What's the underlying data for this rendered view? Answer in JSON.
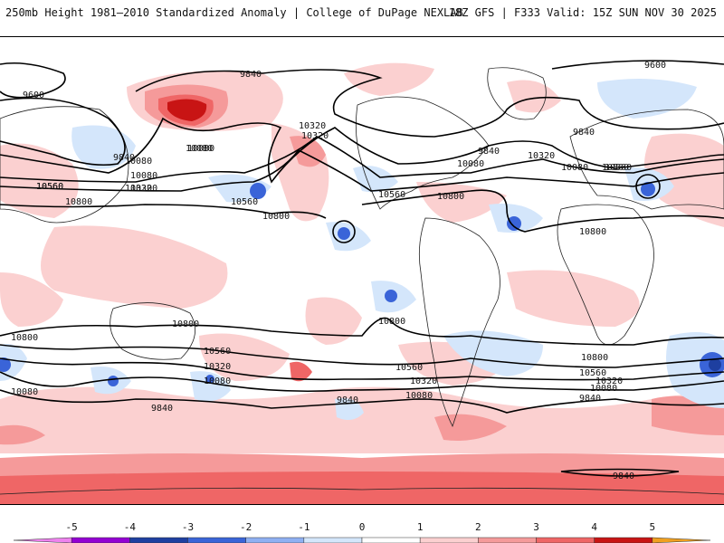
{
  "header": {
    "title": "250mb Height 1981–2010 Standardized Anomaly | College of DuPage NEXLAB",
    "run_info": "18Z GFS | F333 Valid: 15Z SUN NOV 30 2025"
  },
  "contour_labels": [
    "9840",
    "9600",
    "9600",
    "9840",
    "10080",
    "10320",
    "10560",
    "10800",
    "10080",
    "10320",
    "10560",
    "10800",
    "10560",
    "10080",
    "10320",
    "9840",
    "10800",
    "10560",
    "10320",
    "10080",
    "10800",
    "9840",
    "10800",
    "10560",
    "10320",
    "10080",
    "9840",
    "10800",
    "10080",
    "10560",
    "10320",
    "10080",
    "9840",
    "10800",
    "10560",
    "10320",
    "10080",
    "9840",
    "9840",
    "10800",
    "10080",
    "10320",
    "10560",
    "10080",
    "10560"
  ],
  "legend": {
    "ticks": [
      "-5",
      "-4",
      "-3",
      "-2",
      "-1",
      "0",
      "1",
      "2",
      "3",
      "4",
      "5"
    ],
    "colors": [
      "#ee82ee",
      "#9400d3",
      "#1e3fa0",
      "#3a64d8",
      "#8fb0f2",
      "#d4e6fb",
      "#ffffff",
      "#fbd0d0",
      "#f59a9a",
      "#ef6666",
      "#c81414",
      "#f0a020"
    ]
  }
}
